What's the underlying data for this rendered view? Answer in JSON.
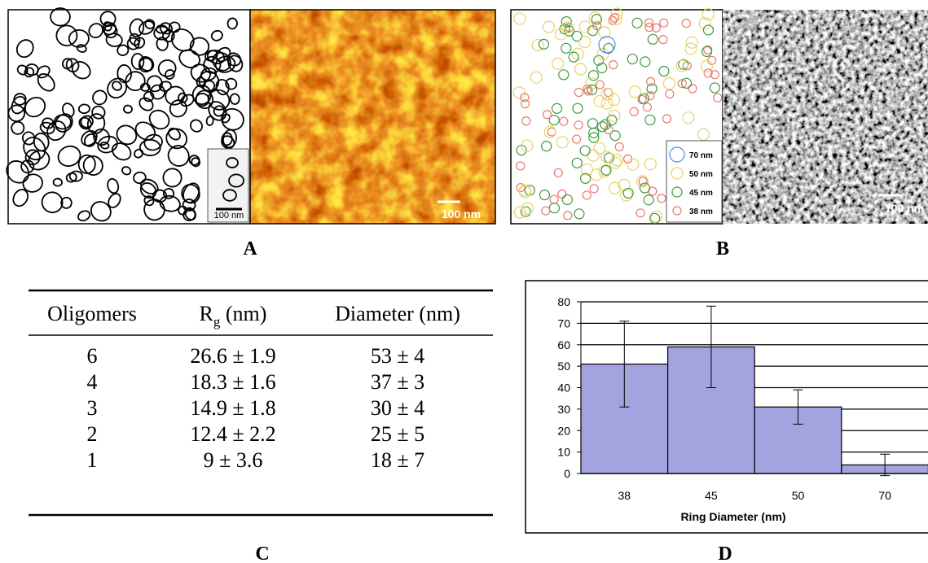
{
  "panel_labels": [
    "A",
    "B",
    "C",
    "D"
  ],
  "panel_a": {
    "inset_scale": "100 nm",
    "image_scale": "100 nm"
  },
  "panel_b": {
    "legend": [
      "70 nm",
      "50 nm",
      "45 nm",
      "38 nm"
    ],
    "image_scale": "100 nm"
  },
  "table": {
    "header": [
      "Oligomers",
      {
        "main": "R",
        "sub": "g",
        "rest": " (nm)"
      },
      "Diameter (nm)"
    ],
    "rows": [
      [
        "6",
        "26.6 ± 1.9",
        "53 ± 4"
      ],
      [
        "4",
        "18.3 ± 1.6",
        "37 ± 3"
      ],
      [
        "3",
        "14.9 ± 1.8",
        "30 ± 4"
      ],
      [
        "2",
        "12.4 ± 2.2",
        "25 ± 5"
      ],
      [
        "1",
        "9 ± 3.6",
        "18 ± 7"
      ]
    ]
  },
  "chart_data": {
    "type": "bar",
    "x_label": "Ring Diameter (nm)",
    "categories": [
      "38",
      "45",
      "50",
      "70"
    ],
    "values": [
      51,
      59,
      31,
      4
    ],
    "errors": [
      20,
      19,
      8,
      5
    ],
    "color": "#a3a3e0",
    "ylim": [
      0,
      80
    ],
    "yticks": [
      0,
      10,
      20,
      30,
      40,
      50,
      60,
      70,
      80
    ],
    "grid": true
  }
}
